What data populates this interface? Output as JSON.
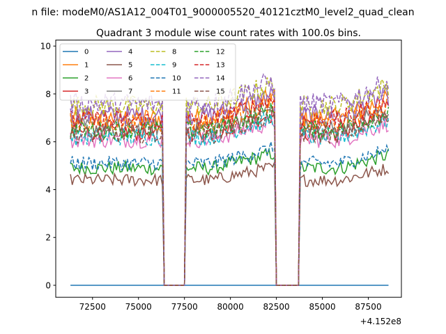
{
  "chart_data": {
    "type": "line",
    "suptitle": "n file: modeM0/AS1A12_004T01_9000005520_40121cztM0_level2_quad_clean",
    "title": "Quadrant 3 module wise count rates with 100.0s bins.",
    "xlabel": "",
    "ylabel": "",
    "x_offset_label": "+4.152e8",
    "xlim": [
      70500,
      89300
    ],
    "ylim": [
      -0.5,
      10.25
    ],
    "xticks": [
      72500,
      75000,
      77500,
      80000,
      82500,
      85000,
      87500
    ],
    "yticks": [
      0,
      2,
      4,
      6,
      8,
      10
    ],
    "x_range": [
      71300,
      88600
    ],
    "bin_seconds": 100,
    "gaps": [
      [
        76350,
        77500
      ],
      [
        82500,
        83750
      ]
    ],
    "grid": false,
    "legend": {
      "placement": "top-left",
      "columns": 4
    },
    "series": [
      {
        "name": "0",
        "color": "#1f77b4",
        "dash": "solid",
        "base": 0.0
      },
      {
        "name": "1",
        "color": "#ff7f0e",
        "dash": "solid",
        "base": 7.0
      },
      {
        "name": "2",
        "color": "#2ca02c",
        "dash": "solid",
        "base": 4.9
      },
      {
        "name": "3",
        "color": "#d62728",
        "dash": "solid",
        "base": 6.4
      },
      {
        "name": "4",
        "color": "#9467bd",
        "dash": "solid",
        "base": 7.1
      },
      {
        "name": "5",
        "color": "#8c564b",
        "dash": "solid",
        "base": 4.4
      },
      {
        "name": "6",
        "color": "#e377c2",
        "dash": "solid",
        "base": 6.1
      },
      {
        "name": "7",
        "color": "#7f7f7f",
        "dash": "solid",
        "base": 6.6
      },
      {
        "name": "8",
        "color": "#bcbd22",
        "dash": "dashed",
        "base": 7.5
      },
      {
        "name": "9",
        "color": "#17becf",
        "dash": "dashed",
        "base": 6.2
      },
      {
        "name": "10",
        "color": "#1f77b4",
        "dash": "dashed",
        "base": 5.1
      },
      {
        "name": "11",
        "color": "#ff7f0e",
        "dash": "dashed",
        "base": 6.8
      },
      {
        "name": "12",
        "color": "#2ca02c",
        "dash": "dashed",
        "base": 6.5
      },
      {
        "name": "13",
        "color": "#d62728",
        "dash": "dashed",
        "base": 6.9
      },
      {
        "name": "14",
        "color": "#9467bd",
        "dash": "dashed",
        "base": 7.6
      },
      {
        "name": "15",
        "color": "#8c564b",
        "dash": "dashed",
        "base": 6.3
      }
    ]
  }
}
